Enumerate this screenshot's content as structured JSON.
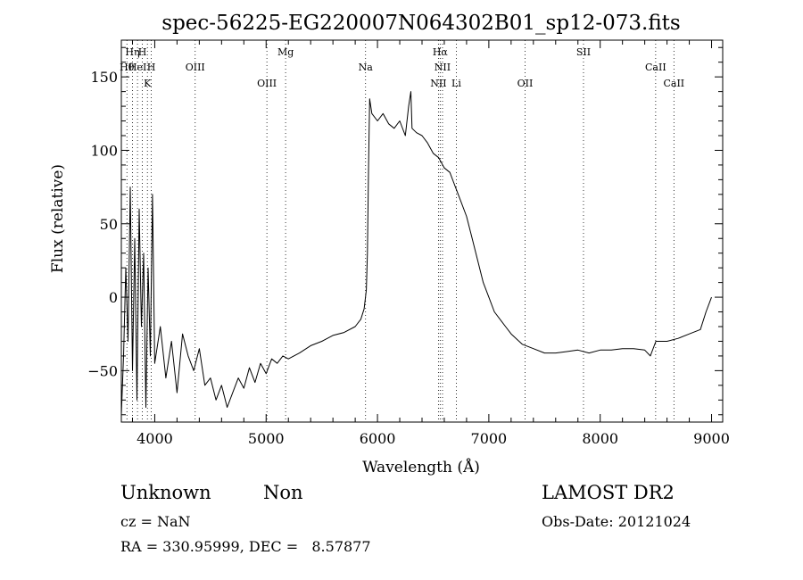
{
  "chart_data": {
    "type": "line",
    "title": "spec-56225-EG220007N064302B01_sp12-073.fits",
    "xlabel": "Wavelength (Å)",
    "ylabel": "Flux (relative)",
    "xlim": [
      3700,
      9100
    ],
    "ylim": [
      -85,
      175
    ],
    "xticks": [
      4000,
      5000,
      6000,
      7000,
      8000,
      9000
    ],
    "yticks": [
      -50,
      0,
      50,
      100,
      150
    ],
    "grid": false,
    "line_color": "#000000",
    "series": [
      {
        "x": [
          3700,
          3720,
          3740,
          3760,
          3780,
          3800,
          3820,
          3840,
          3860,
          3880,
          3900,
          3920,
          3940,
          3960,
          3980,
          4000,
          4050,
          4100,
          4150,
          4200,
          4250,
          4300,
          4350,
          4400,
          4450,
          4500,
          4550,
          4600,
          4650,
          4700,
          4750,
          4800,
          4850,
          4900,
          4950,
          5000,
          5050,
          5100,
          5150,
          5200,
          5300,
          5400,
          5500,
          5600,
          5700,
          5800,
          5850,
          5880,
          5900,
          5910,
          5920,
          5930,
          5950,
          6000,
          6050,
          6100,
          6150,
          6200,
          6250,
          6280,
          6300,
          6310,
          6350,
          6400,
          6450,
          6500,
          6550,
          6600,
          6650,
          6700,
          6750,
          6800,
          6850,
          6900,
          6950,
          7000,
          7050,
          7100,
          7150,
          7200,
          7300,
          7400,
          7500,
          7600,
          7700,
          7800,
          7900,
          8000,
          8100,
          8200,
          8300,
          8400,
          8450,
          8500,
          8600,
          8700,
          8800,
          8900,
          8950,
          9000
        ],
        "values": [
          -80,
          -40,
          20,
          -30,
          75,
          -50,
          40,
          -70,
          60,
          -20,
          30,
          -75,
          20,
          -40,
          70,
          -45,
          -20,
          -55,
          -30,
          -65,
          -25,
          -40,
          -50,
          -35,
          -60,
          -55,
          -70,
          -60,
          -75,
          -65,
          -55,
          -62,
          -48,
          -58,
          -45,
          -52,
          -42,
          -45,
          -40,
          -42,
          -38,
          -33,
          -30,
          -26,
          -24,
          -20,
          -15,
          -8,
          5,
          30,
          90,
          135,
          125,
          120,
          125,
          118,
          115,
          120,
          110,
          130,
          140,
          115,
          112,
          110,
          105,
          98,
          95,
          88,
          85,
          75,
          65,
          55,
          40,
          25,
          10,
          0,
          -10,
          -15,
          -20,
          -25,
          -32,
          -35,
          -38,
          -38,
          -37,
          -36,
          -38,
          -36,
          -36,
          -35,
          -35,
          -36,
          -40,
          -30,
          -30,
          -28,
          -25,
          -22,
          -10,
          0
        ]
      }
    ],
    "line_labels": [
      {
        "x": 3750,
        "text": "Hθ",
        "row": 1
      },
      {
        "x": 3800,
        "text": "Hη",
        "row": 0
      },
      {
        "x": 3845,
        "text": "HeI",
        "row": 1
      },
      {
        "x": 3889,
        "text": "H",
        "row": 0
      },
      {
        "x": 3934,
        "text": "K",
        "row": 2
      },
      {
        "x": 3969,
        "text": "H",
        "row": 1
      },
      {
        "x": 4363,
        "text": "OIII",
        "row": 1
      },
      {
        "x": 5007,
        "text": "OIII",
        "row": 2
      },
      {
        "x": 5175,
        "text": "Mg",
        "row": 0
      },
      {
        "x": 5893,
        "text": "Na",
        "row": 1
      },
      {
        "x": 6563,
        "text": "Hα",
        "row": 0
      },
      {
        "x": 6548,
        "text": "NII",
        "row": 2
      },
      {
        "x": 6584,
        "text": "NII",
        "row": 1
      },
      {
        "x": 6708,
        "text": "Li",
        "row": 2
      },
      {
        "x": 7325,
        "text": "OII",
        "row": 2
      },
      {
        "x": 7850,
        "text": "SII",
        "row": 0
      },
      {
        "x": 8498,
        "text": "CaII",
        "row": 1
      },
      {
        "x": 8662,
        "text": "CaII",
        "row": 2
      }
    ]
  },
  "info": {
    "object_class": "Unknown",
    "object_subclass": "Non",
    "survey": "LAMOST DR2",
    "cz": "cz = NaN",
    "obs_date": "Obs-Date: 20121024",
    "ra_dec": "RA = 330.95999, DEC =   8.57877"
  }
}
